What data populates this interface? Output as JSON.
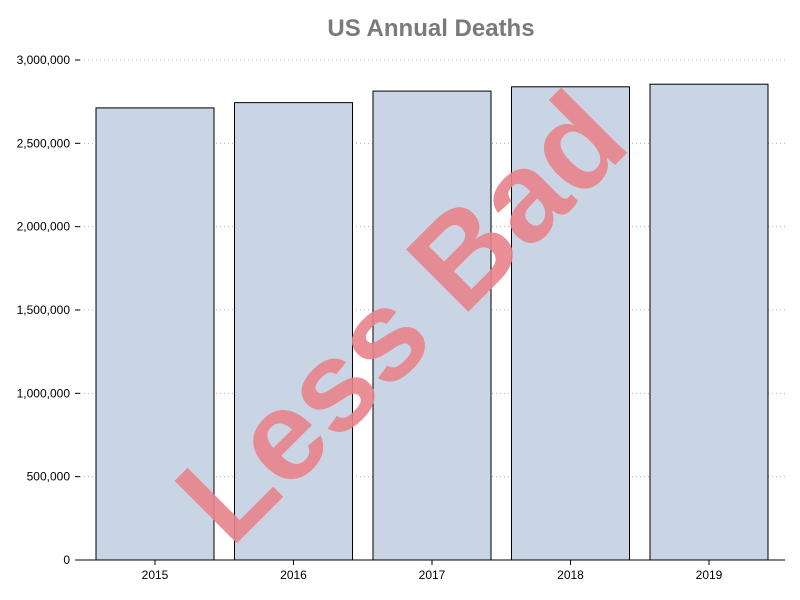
{
  "chart_data": {
    "type": "bar",
    "title": "US Annual Deaths",
    "xlabel": "",
    "ylabel": "",
    "categories": [
      "2015",
      "2016",
      "2017",
      "2018",
      "2019"
    ],
    "values": [
      2712630,
      2744248,
      2813503,
      2839205,
      2854838
    ],
    "ylim": [
      0,
      3000000
    ],
    "yticks": [
      0,
      500000,
      1000000,
      1500000,
      2000000,
      2500000,
      3000000
    ],
    "ytick_labels": [
      "0",
      "500,000",
      "1,000,000",
      "1,500,000",
      "2,000,000",
      "2,500,000",
      "3,000,000"
    ],
    "grid": "horizontal dotted",
    "legend": "none"
  },
  "colors": {
    "bar_fill": "#c9d5e5",
    "bar_stroke": "#000000",
    "title": "#7a7a7a",
    "grid": "#b0b0b0",
    "watermark": "#e8838b"
  },
  "watermark": "Less Bad"
}
